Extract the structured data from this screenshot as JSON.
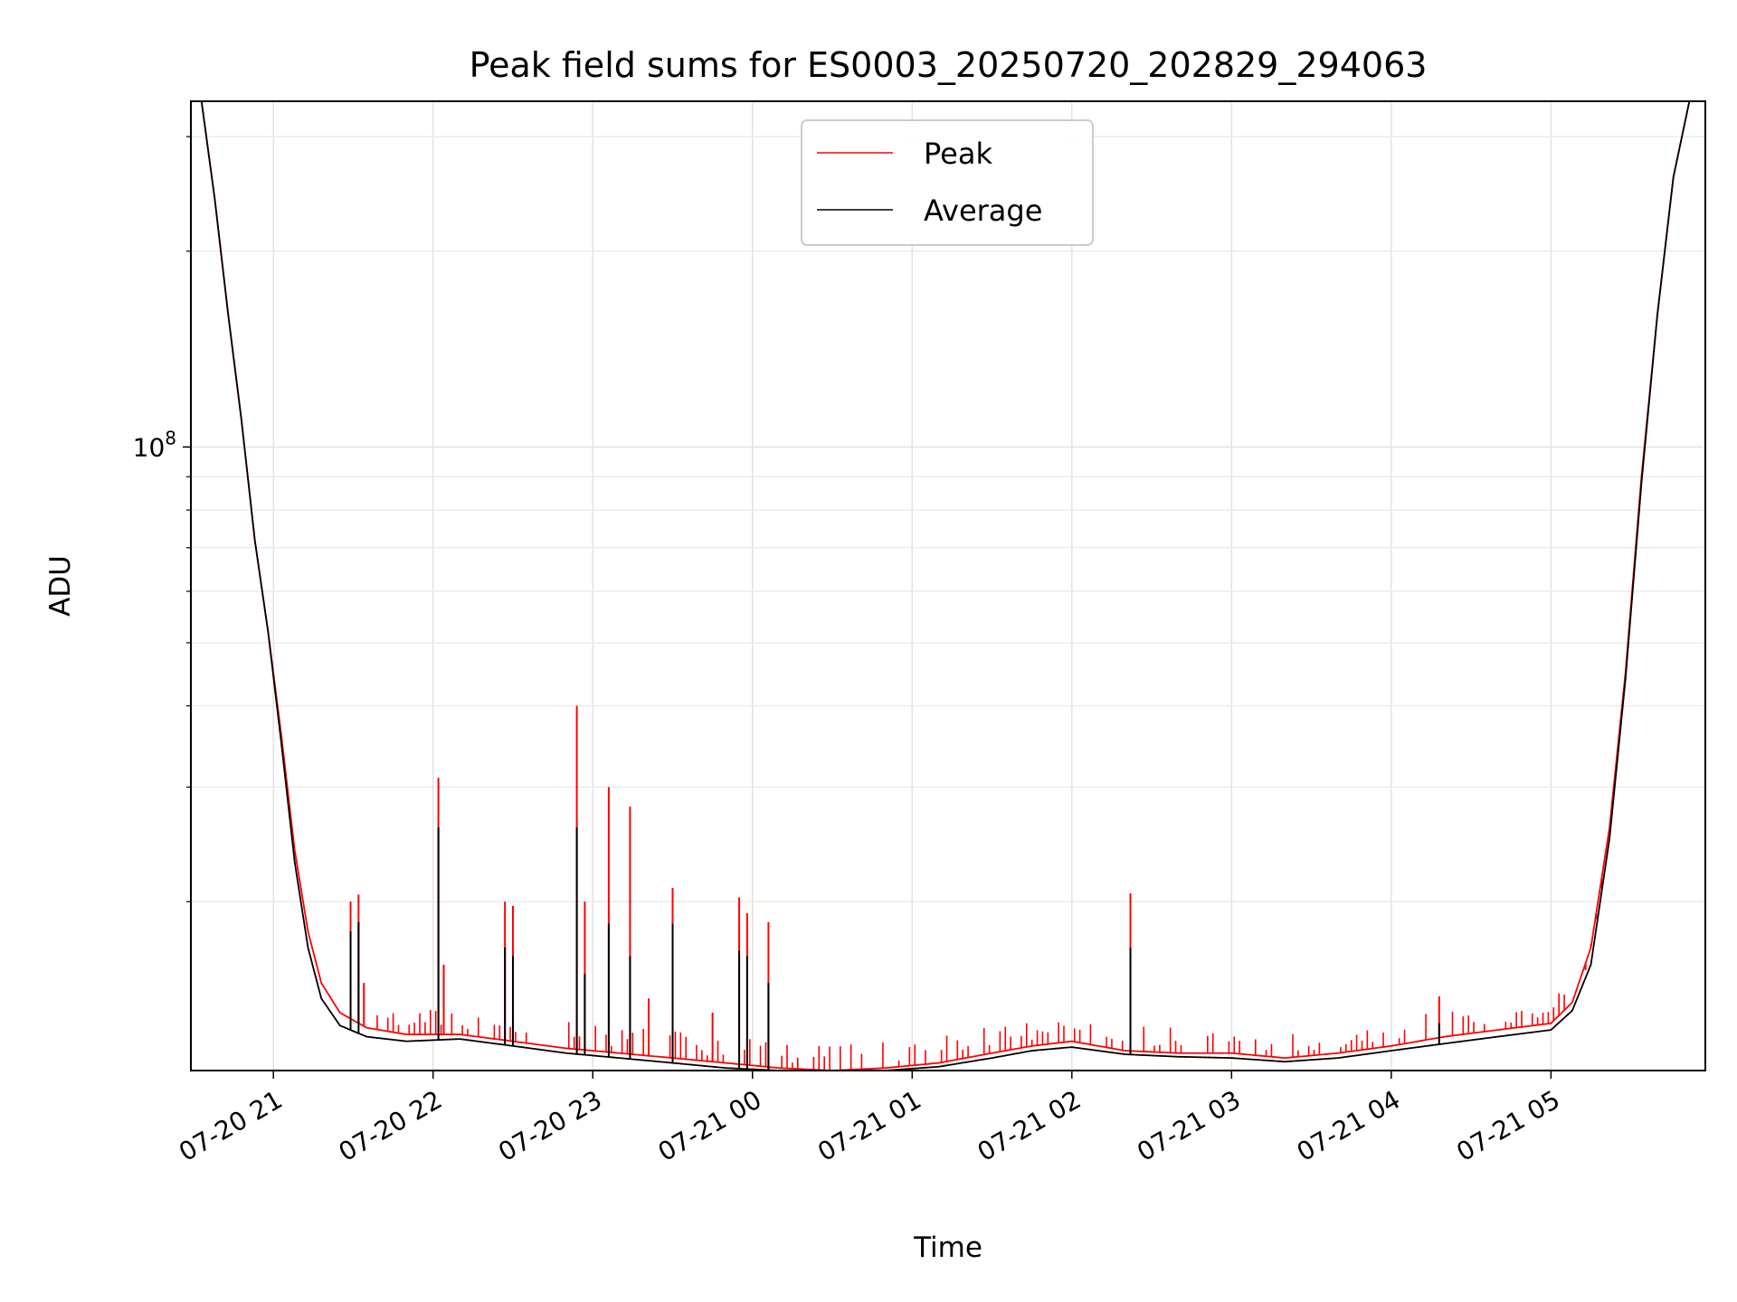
{
  "chart_data": {
    "type": "line",
    "title": "Peak field sums for ES0003_20250720_202829_294063",
    "xlabel": "Time",
    "ylabel": "ADU",
    "y_scale": "log",
    "y_ticks": [
      {
        "value": 100000000,
        "base": "10",
        "exp": "8"
      }
    ],
    "x_ticks": [
      "07-20 21",
      "07-20 22",
      "07-20 23",
      "07-21 00",
      "07-21 01",
      "07-21 02",
      "07-21 03",
      "07-21 04",
      "07-21 05"
    ],
    "xlim": [
      "07-20 20:29",
      "07-21 05:58"
    ],
    "ylim": [
      11000000,
      340000000
    ],
    "grid": true,
    "legend": {
      "placement": "upper center",
      "entries": [
        "Peak",
        "Average"
      ]
    },
    "series": [
      {
        "name": "Peak",
        "color": "#ff0000",
        "points": [
          [
            "07-20 20:33",
            340000000
          ],
          [
            "07-20 20:38",
            240000000
          ],
          [
            "07-20 20:43",
            160000000
          ],
          [
            "07-20 20:48",
            110000000
          ],
          [
            "07-20 20:53",
            72000000
          ],
          [
            "07-20 20:58",
            52000000
          ],
          [
            "07-20 21:03",
            36000000
          ],
          [
            "07-20 21:08",
            24000000
          ],
          [
            "07-20 21:13",
            18000000
          ],
          [
            "07-20 21:18",
            15000000
          ],
          [
            "07-20 21:25",
            13500000
          ],
          [
            "07-20 21:35",
            12800000
          ],
          [
            "07-20 21:50",
            12500000
          ],
          [
            "07-20 22:10",
            12500000
          ],
          [
            "07-20 22:30",
            12200000
          ],
          [
            "07-20 22:50",
            11900000
          ],
          [
            "07-20 23:10",
            11700000
          ],
          [
            "07-20 23:30",
            11500000
          ],
          [
            "07-20 23:50",
            11300000
          ],
          [
            "07-21 00:10",
            11100000
          ],
          [
            "07-21 00:30",
            11000000
          ],
          [
            "07-21 00:50",
            11100000
          ],
          [
            "07-21 01:10",
            11300000
          ],
          [
            "07-21 01:30",
            11700000
          ],
          [
            "07-21 01:45",
            12000000
          ],
          [
            "07-21 02:00",
            12200000
          ],
          [
            "07-21 02:20",
            11800000
          ],
          [
            "07-21 02:40",
            11700000
          ],
          [
            "07-21 03:00",
            11700000
          ],
          [
            "07-21 03:20",
            11500000
          ],
          [
            "07-21 03:40",
            11700000
          ],
          [
            "07-21 04:00",
            12000000
          ],
          [
            "07-21 04:20",
            12400000
          ],
          [
            "07-21 04:40",
            12700000
          ],
          [
            "07-21 05:00",
            13000000
          ],
          [
            "07-21 05:08",
            14000000
          ],
          [
            "07-21 05:15",
            17000000
          ],
          [
            "07-21 05:22",
            26000000
          ],
          [
            "07-21 05:28",
            45000000
          ],
          [
            "07-21 05:34",
            90000000
          ],
          [
            "07-21 05:40",
            160000000
          ],
          [
            "07-21 05:46",
            260000000
          ],
          [
            "07-21 05:52",
            340000000
          ]
        ],
        "spikes": [
          [
            "07-20 21:29",
            20000000
          ],
          [
            "07-20 21:32",
            20500000
          ],
          [
            "07-20 21:34",
            15000000
          ],
          [
            "07-20 22:02",
            31000000
          ],
          [
            "07-20 22:04",
            16000000
          ],
          [
            "07-20 22:27",
            20000000
          ],
          [
            "07-20 22:30",
            19700000
          ],
          [
            "07-20 22:54",
            40000000
          ],
          [
            "07-20 22:57",
            20000000
          ],
          [
            "07-20 23:06",
            30000000
          ],
          [
            "07-20 23:14",
            28000000
          ],
          [
            "07-20 23:21",
            14200000
          ],
          [
            "07-20 23:30",
            21000000
          ],
          [
            "07-20 23:45",
            13500000
          ],
          [
            "07-20 23:55",
            20300000
          ],
          [
            "07-20 23:58",
            19200000
          ],
          [
            "07-21 00:06",
            18600000
          ],
          [
            "07-21 02:22",
            20600000
          ],
          [
            "07-21 04:18",
            14300000
          ],
          [
            "07-21 05:13",
            15700000
          ],
          [
            "07-21 05:15",
            17200000
          ],
          [
            "07-21 05:17",
            18800000
          ],
          [
            "07-21 05:19",
            21000000
          ]
        ]
      },
      {
        "name": "Average",
        "color": "#000000",
        "points": [
          [
            "07-20 20:33",
            340000000
          ],
          [
            "07-20 20:38",
            240000000
          ],
          [
            "07-20 20:43",
            160000000
          ],
          [
            "07-20 20:48",
            110000000
          ],
          [
            "07-20 20:53",
            72000000
          ],
          [
            "07-20 20:58",
            52000000
          ],
          [
            "07-20 21:03",
            35000000
          ],
          [
            "07-20 21:08",
            23000000
          ],
          [
            "07-20 21:13",
            17000000
          ],
          [
            "07-20 21:18",
            14200000
          ],
          [
            "07-20 21:25",
            12900000
          ],
          [
            "07-20 21:35",
            12400000
          ],
          [
            "07-20 21:50",
            12200000
          ],
          [
            "07-20 22:10",
            12300000
          ],
          [
            "07-20 22:30",
            12000000
          ],
          [
            "07-20 22:50",
            11700000
          ],
          [
            "07-20 23:10",
            11500000
          ],
          [
            "07-20 23:30",
            11300000
          ],
          [
            "07-20 23:50",
            11100000
          ],
          [
            "07-21 00:10",
            11000000
          ],
          [
            "07-21 00:30",
            10950000
          ],
          [
            "07-21 00:50",
            11000000
          ],
          [
            "07-21 01:10",
            11150000
          ],
          [
            "07-21 01:30",
            11500000
          ],
          [
            "07-21 01:45",
            11800000
          ],
          [
            "07-21 02:00",
            11950000
          ],
          [
            "07-21 02:20",
            11650000
          ],
          [
            "07-21 02:40",
            11550000
          ],
          [
            "07-21 03:00",
            11500000
          ],
          [
            "07-21 03:20",
            11350000
          ],
          [
            "07-21 03:40",
            11500000
          ],
          [
            "07-21 04:00",
            11800000
          ],
          [
            "07-21 04:20",
            12100000
          ],
          [
            "07-21 04:40",
            12400000
          ],
          [
            "07-21 05:00",
            12700000
          ],
          [
            "07-21 05:08",
            13600000
          ],
          [
            "07-21 05:15",
            16000000
          ],
          [
            "07-21 05:22",
            25000000
          ],
          [
            "07-21 05:28",
            44000000
          ],
          [
            "07-21 05:34",
            88000000
          ],
          [
            "07-21 05:40",
            160000000
          ],
          [
            "07-21 05:46",
            260000000
          ],
          [
            "07-21 05:52",
            340000000
          ]
        ],
        "spikes": [
          [
            "07-20 21:29",
            18000000
          ],
          [
            "07-20 21:32",
            18600000
          ],
          [
            "07-20 22:02",
            26000000
          ],
          [
            "07-20 22:27",
            17000000
          ],
          [
            "07-20 22:30",
            16500000
          ],
          [
            "07-20 22:54",
            26000000
          ],
          [
            "07-20 22:57",
            15500000
          ],
          [
            "07-20 23:06",
            18500000
          ],
          [
            "07-20 23:14",
            16500000
          ],
          [
            "07-20 23:30",
            18500000
          ],
          [
            "07-20 23:55",
            16800000
          ],
          [
            "07-20 23:58",
            16500000
          ],
          [
            "07-21 00:06",
            15000000
          ],
          [
            "07-21 02:22",
            17000000
          ],
          [
            "07-21 04:18",
            13000000
          ]
        ]
      }
    ]
  }
}
